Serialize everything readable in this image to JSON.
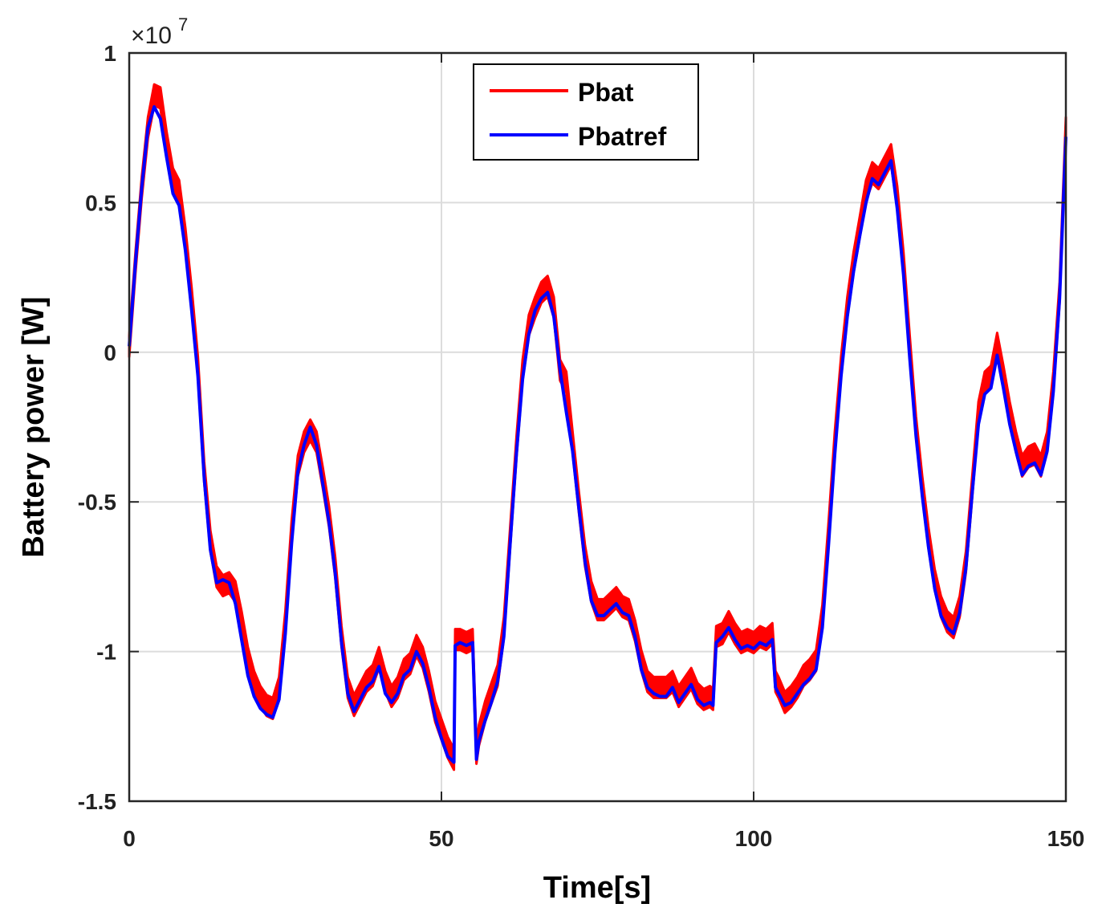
{
  "chart_data": {
    "type": "line",
    "title": "",
    "xlabel": "Time[s]",
    "ylabel": "Battery power [W]",
    "xlim": [
      0,
      150
    ],
    "ylim": [
      -1.5,
      1
    ],
    "y_scale_label": {
      "prefix": "×10",
      "exponent": "7"
    },
    "xticks": [
      0,
      50,
      100,
      150
    ],
    "xtick_labels": [
      "0",
      "50",
      "100",
      "150"
    ],
    "yticks": [
      -1.5,
      -1,
      -0.5,
      0,
      0.5,
      1
    ],
    "ytick_labels": [
      "-1.5",
      "-1",
      "-0.5",
      "0",
      "0.5",
      "1"
    ],
    "grid": true,
    "legend_position": "top-center",
    "x": [
      0,
      1,
      2,
      3,
      4,
      5,
      6,
      7,
      8,
      9,
      10,
      11,
      12,
      13,
      14,
      15,
      16,
      17,
      18,
      19,
      20,
      21,
      22,
      23,
      24,
      25,
      26,
      27,
      28,
      29,
      30,
      31,
      32,
      33,
      34,
      35,
      36,
      37,
      38,
      39,
      40,
      41,
      42,
      43,
      44,
      45,
      46,
      47,
      48,
      49,
      50,
      51,
      52,
      52.2,
      53,
      54,
      55,
      55.6,
      56,
      57,
      58,
      59,
      60,
      61,
      62,
      63,
      64,
      65,
      66,
      67,
      68,
      69,
      70,
      71,
      72,
      73,
      74,
      75,
      76,
      77,
      78,
      79,
      80,
      81,
      82,
      83,
      84,
      85,
      86,
      87,
      88,
      89,
      90,
      91,
      92,
      93,
      93.5,
      94,
      95,
      96,
      97,
      98,
      99,
      100,
      101,
      102,
      103,
      103.5,
      104,
      105,
      106,
      107,
      108,
      109,
      110,
      111,
      112,
      113,
      114,
      115,
      116,
      117,
      118,
      119,
      120,
      121,
      122,
      123,
      124,
      125,
      126,
      127,
      128,
      129,
      130,
      131,
      132,
      133,
      134,
      135,
      136,
      137,
      138,
      139,
      140,
      141,
      142,
      143,
      144,
      145,
      146,
      147,
      148,
      149,
      150
    ],
    "series": [
      {
        "name": "Pbat",
        "color": "#ff0000",
        "band_halfwidth": 0.035,
        "values": [
          0.02,
          0.3,
          0.55,
          0.75,
          0.86,
          0.85,
          0.7,
          0.58,
          0.54,
          0.38,
          0.18,
          -0.05,
          -0.4,
          -0.63,
          -0.75,
          -0.78,
          -0.77,
          -0.8,
          -0.9,
          -1.02,
          -1.1,
          -1.15,
          -1.18,
          -1.19,
          -1.12,
          -0.9,
          -0.6,
          -0.38,
          -0.3,
          -0.26,
          -0.3,
          -0.42,
          -0.55,
          -0.72,
          -0.95,
          -1.12,
          -1.18,
          -1.14,
          -1.1,
          -1.08,
          -1.02,
          -1.1,
          -1.15,
          -1.12,
          -1.06,
          -1.04,
          -0.98,
          -1.02,
          -1.1,
          -1.2,
          -1.26,
          -1.32,
          -1.36,
          -0.96,
          -0.96,
          -0.97,
          -0.96,
          -1.34,
          -1.28,
          -1.2,
          -1.14,
          -1.08,
          -0.92,
          -0.62,
          -0.32,
          -0.06,
          0.09,
          0.15,
          0.2,
          0.22,
          0.15,
          -0.06,
          -0.1,
          -0.3,
          -0.5,
          -0.68,
          -0.8,
          -0.86,
          -0.86,
          -0.84,
          -0.82,
          -0.85,
          -0.86,
          -0.93,
          -1.03,
          -1.1,
          -1.12,
          -1.12,
          -1.12,
          -1.1,
          -1.15,
          -1.12,
          -1.09,
          -1.14,
          -1.16,
          -1.15,
          -1.16,
          -0.95,
          -0.94,
          -0.9,
          -0.94,
          -0.97,
          -0.96,
          -0.97,
          -0.95,
          -0.96,
          -0.94,
          -1.1,
          -1.12,
          -1.17,
          -1.15,
          -1.12,
          -1.08,
          -1.06,
          -1.03,
          -0.88,
          -0.6,
          -0.3,
          -0.05,
          0.15,
          0.3,
          0.42,
          0.54,
          0.6,
          0.58,
          0.62,
          0.66,
          0.52,
          0.3,
          0.02,
          -0.25,
          -0.45,
          -0.62,
          -0.76,
          -0.85,
          -0.9,
          -0.92,
          -0.85,
          -0.7,
          -0.45,
          -0.2,
          -0.1,
          -0.08,
          0.03,
          -0.08,
          -0.2,
          -0.3,
          -0.38,
          -0.35,
          -0.34,
          -0.38,
          -0.3,
          -0.1,
          0.2,
          0.75
        ]
      },
      {
        "name": "Pbatref",
        "color": "#0000ff",
        "values": [
          0.02,
          0.3,
          0.55,
          0.75,
          0.82,
          0.78,
          0.65,
          0.53,
          0.49,
          0.34,
          0.14,
          -0.08,
          -0.42,
          -0.66,
          -0.77,
          -0.76,
          -0.77,
          -0.84,
          -0.96,
          -1.08,
          -1.15,
          -1.19,
          -1.21,
          -1.22,
          -1.16,
          -0.94,
          -0.64,
          -0.4,
          -0.31,
          -0.25,
          -0.31,
          -0.44,
          -0.57,
          -0.74,
          -0.97,
          -1.14,
          -1.2,
          -1.16,
          -1.12,
          -1.1,
          -1.05,
          -1.14,
          -1.17,
          -1.14,
          -1.08,
          -1.06,
          -1.0,
          -1.04,
          -1.12,
          -1.22,
          -1.29,
          -1.35,
          -1.37,
          -0.98,
          -0.97,
          -0.98,
          -0.97,
          -1.36,
          -1.3,
          -1.23,
          -1.17,
          -1.1,
          -0.95,
          -0.64,
          -0.34,
          -0.09,
          0.06,
          0.14,
          0.18,
          0.2,
          0.12,
          -0.06,
          -0.2,
          -0.33,
          -0.52,
          -0.7,
          -0.83,
          -0.88,
          -0.88,
          -0.86,
          -0.84,
          -0.87,
          -0.88,
          -0.95,
          -1.06,
          -1.12,
          -1.14,
          -1.15,
          -1.15,
          -1.12,
          -1.17,
          -1.14,
          -1.11,
          -1.16,
          -1.18,
          -1.17,
          -1.18,
          -0.97,
          -0.95,
          -0.92,
          -0.96,
          -0.99,
          -0.98,
          -0.99,
          -0.97,
          -0.98,
          -0.96,
          -1.12,
          -1.14,
          -1.18,
          -1.17,
          -1.14,
          -1.11,
          -1.09,
          -1.06,
          -0.92,
          -0.64,
          -0.34,
          -0.08,
          0.12,
          0.27,
          0.39,
          0.5,
          0.58,
          0.56,
          0.6,
          0.64,
          0.48,
          0.26,
          -0.02,
          -0.28,
          -0.48,
          -0.65,
          -0.79,
          -0.88,
          -0.92,
          -0.94,
          -0.87,
          -0.72,
          -0.47,
          -0.24,
          -0.14,
          -0.12,
          -0.01,
          -0.12,
          -0.24,
          -0.33,
          -0.41,
          -0.38,
          -0.37,
          -0.41,
          -0.33,
          -0.13,
          0.18,
          0.72
        ]
      }
    ]
  }
}
